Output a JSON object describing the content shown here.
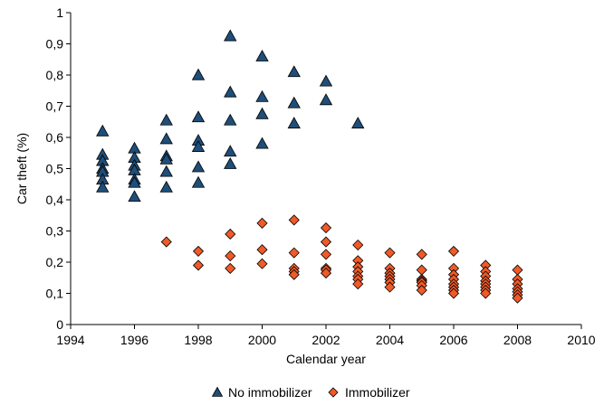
{
  "chart_data": {
    "type": "scatter",
    "title": "",
    "xlabel": "Calendar year",
    "ylabel": "Car theft (%)",
    "xlim": [
      1994,
      2010
    ],
    "ylim": [
      0,
      1
    ],
    "x_ticks": [
      1994,
      1996,
      1998,
      2000,
      2002,
      2004,
      2006,
      2008,
      2010
    ],
    "y_ticks": [
      0,
      0.1,
      0.2,
      0.3,
      0.4,
      0.5,
      0.6,
      0.7,
      0.8,
      0.9,
      1
    ],
    "y_tick_labels": [
      "0",
      "0,1",
      "0,2",
      "0,3",
      "0,4",
      "0,5",
      "0,6",
      "0,7",
      "0,8",
      "0,9",
      "1"
    ],
    "x_tick_labels": [
      "1994",
      "1996",
      "1998",
      "2000",
      "2002",
      "2004",
      "2006",
      "2008",
      "2010"
    ],
    "grid": false,
    "legend_position": "bottom",
    "series": [
      {
        "name": "No immobilizer",
        "marker": "triangle",
        "color": "#1f4e79",
        "points": [
          {
            "x": 1995,
            "y": 0.62
          },
          {
            "x": 1995,
            "y": 0.545
          },
          {
            "x": 1995,
            "y": 0.525
          },
          {
            "x": 1995,
            "y": 0.5
          },
          {
            "x": 1995,
            "y": 0.49
          },
          {
            "x": 1995,
            "y": 0.465
          },
          {
            "x": 1995,
            "y": 0.44
          },
          {
            "x": 1996,
            "y": 0.565
          },
          {
            "x": 1996,
            "y": 0.535
          },
          {
            "x": 1996,
            "y": 0.51
          },
          {
            "x": 1996,
            "y": 0.495
          },
          {
            "x": 1996,
            "y": 0.465
          },
          {
            "x": 1996,
            "y": 0.455
          },
          {
            "x": 1996,
            "y": 0.41
          },
          {
            "x": 1997,
            "y": 0.655
          },
          {
            "x": 1997,
            "y": 0.595
          },
          {
            "x": 1997,
            "y": 0.54
          },
          {
            "x": 1997,
            "y": 0.53
          },
          {
            "x": 1997,
            "y": 0.49
          },
          {
            "x": 1997,
            "y": 0.44
          },
          {
            "x": 1998,
            "y": 0.8
          },
          {
            "x": 1998,
            "y": 0.665
          },
          {
            "x": 1998,
            "y": 0.59
          },
          {
            "x": 1998,
            "y": 0.57
          },
          {
            "x": 1998,
            "y": 0.505
          },
          {
            "x": 1998,
            "y": 0.455
          },
          {
            "x": 1999,
            "y": 0.925
          },
          {
            "x": 1999,
            "y": 0.745
          },
          {
            "x": 1999,
            "y": 0.655
          },
          {
            "x": 1999,
            "y": 0.555
          },
          {
            "x": 1999,
            "y": 0.515
          },
          {
            "x": 2000,
            "y": 0.86
          },
          {
            "x": 2000,
            "y": 0.73
          },
          {
            "x": 2000,
            "y": 0.675
          },
          {
            "x": 2000,
            "y": 0.58
          },
          {
            "x": 2001,
            "y": 0.81
          },
          {
            "x": 2001,
            "y": 0.71
          },
          {
            "x": 2001,
            "y": 0.645
          },
          {
            "x": 2002,
            "y": 0.78
          },
          {
            "x": 2002,
            "y": 0.72
          },
          {
            "x": 2003,
            "y": 0.645
          }
        ]
      },
      {
        "name": "Immobilizer",
        "marker": "diamond",
        "color": "#f05a28",
        "points": [
          {
            "x": 1997,
            "y": 0.265
          },
          {
            "x": 1998,
            "y": 0.235
          },
          {
            "x": 1998,
            "y": 0.19
          },
          {
            "x": 1999,
            "y": 0.29
          },
          {
            "x": 1999,
            "y": 0.22
          },
          {
            "x": 1999,
            "y": 0.18
          },
          {
            "x": 2000,
            "y": 0.325
          },
          {
            "x": 2000,
            "y": 0.24
          },
          {
            "x": 2000,
            "y": 0.195
          },
          {
            "x": 2001,
            "y": 0.335
          },
          {
            "x": 2001,
            "y": 0.23
          },
          {
            "x": 2001,
            "y": 0.18
          },
          {
            "x": 2001,
            "y": 0.17
          },
          {
            "x": 2001,
            "y": 0.16
          },
          {
            "x": 2002,
            "y": 0.31
          },
          {
            "x": 2002,
            "y": 0.265
          },
          {
            "x": 2002,
            "y": 0.225
          },
          {
            "x": 2002,
            "y": 0.18
          },
          {
            "x": 2002,
            "y": 0.175
          },
          {
            "x": 2002,
            "y": 0.165
          },
          {
            "x": 2003,
            "y": 0.255
          },
          {
            "x": 2003,
            "y": 0.205
          },
          {
            "x": 2003,
            "y": 0.185
          },
          {
            "x": 2003,
            "y": 0.17
          },
          {
            "x": 2003,
            "y": 0.155
          },
          {
            "x": 2003,
            "y": 0.145
          },
          {
            "x": 2003,
            "y": 0.13
          },
          {
            "x": 2004,
            "y": 0.23
          },
          {
            "x": 2004,
            "y": 0.18
          },
          {
            "x": 2004,
            "y": 0.165
          },
          {
            "x": 2004,
            "y": 0.155
          },
          {
            "x": 2004,
            "y": 0.145
          },
          {
            "x": 2004,
            "y": 0.135
          },
          {
            "x": 2004,
            "y": 0.12
          },
          {
            "x": 2005,
            "y": 0.225
          },
          {
            "x": 2005,
            "y": 0.175
          },
          {
            "x": 2005,
            "y": 0.145
          },
          {
            "x": 2005,
            "y": 0.14
          },
          {
            "x": 2005,
            "y": 0.135
          },
          {
            "x": 2005,
            "y": 0.125
          },
          {
            "x": 2005,
            "y": 0.11
          },
          {
            "x": 2006,
            "y": 0.235
          },
          {
            "x": 2006,
            "y": 0.18
          },
          {
            "x": 2006,
            "y": 0.16
          },
          {
            "x": 2006,
            "y": 0.145
          },
          {
            "x": 2006,
            "y": 0.13
          },
          {
            "x": 2006,
            "y": 0.12
          },
          {
            "x": 2006,
            "y": 0.11
          },
          {
            "x": 2006,
            "y": 0.1
          },
          {
            "x": 2007,
            "y": 0.19
          },
          {
            "x": 2007,
            "y": 0.17
          },
          {
            "x": 2007,
            "y": 0.155
          },
          {
            "x": 2007,
            "y": 0.14
          },
          {
            "x": 2007,
            "y": 0.13
          },
          {
            "x": 2007,
            "y": 0.12
          },
          {
            "x": 2007,
            "y": 0.11
          },
          {
            "x": 2007,
            "y": 0.1
          },
          {
            "x": 2008,
            "y": 0.175
          },
          {
            "x": 2008,
            "y": 0.145
          },
          {
            "x": 2008,
            "y": 0.13
          },
          {
            "x": 2008,
            "y": 0.115
          },
          {
            "x": 2008,
            "y": 0.105
          },
          {
            "x": 2008,
            "y": 0.095
          },
          {
            "x": 2008,
            "y": 0.085
          }
        ]
      }
    ]
  }
}
